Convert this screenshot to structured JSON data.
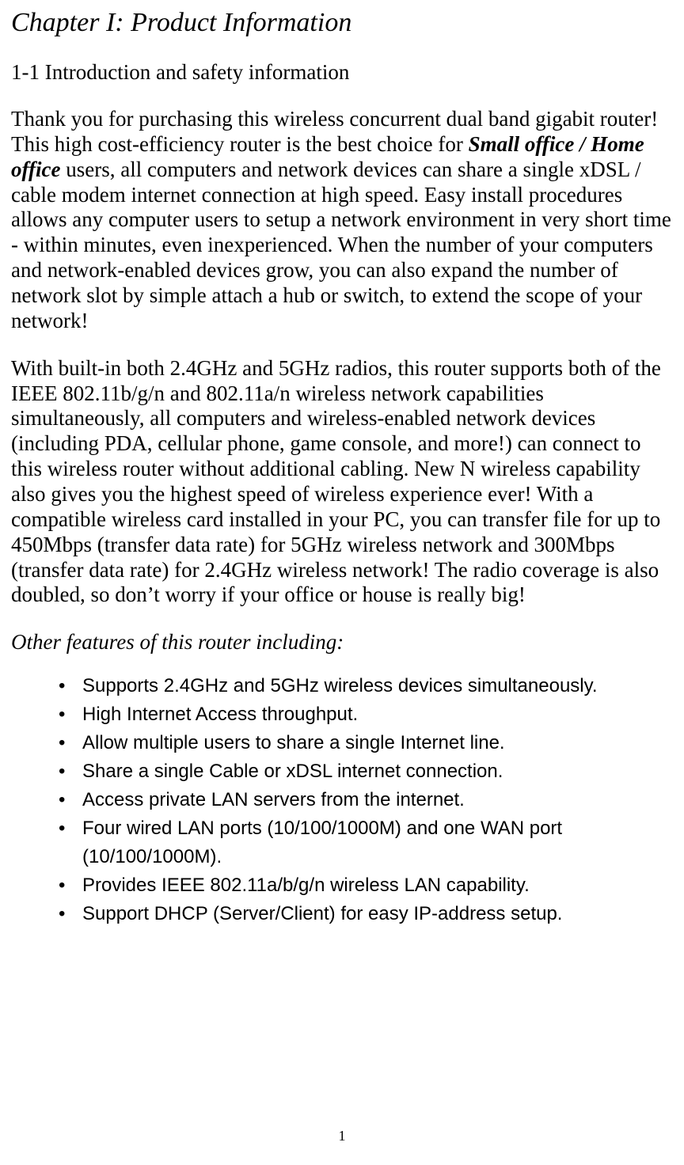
{
  "chapter": {
    "title": "Chapter I: Product Information",
    "title_fontsize": 34,
    "title_style": "italic"
  },
  "section": {
    "heading": "1-1 Introduction and safety information",
    "heading_fontsize": 27
  },
  "paragraphs": {
    "p1_pre": "Thank you for purchasing this wireless concurrent dual band gigabit router! This high cost-efficiency router is the best choice for ",
    "p1_bold": "Small office / Home office",
    "p1_post": " users, all computers and network devices can share a single xDSL / cable modem internet connection at high speed. Easy install procedures allows any computer users to setup a network environment in very short time - within minutes, even inexperienced. When the number of your computers and network-enabled devices grow, you can also expand the number of network slot by simple attach a hub or switch, to extend the scope of your network!",
    "p2": "With built-in both 2.4GHz and 5GHz radios, this router supports both of the IEEE 802.11b/g/n and 802.11a/n wireless network capabilities simultaneously, all computers and wireless-enabled network devices (including PDA, cellular phone, game console, and more!) can connect to this wireless router without additional cabling. New N wireless capability also gives you the highest speed of wireless experience ever! With a compatible wireless card installed in your PC, you can transfer file for up to 450Mbps (transfer data rate) for 5GHz wireless network and 300Mbps (transfer data rate) for 2.4GHz wireless network! The radio coverage is also doubled, so don’t worry if your office or house is really big!"
  },
  "features": {
    "heading": "Other features of this router including:",
    "heading_style": "italic",
    "items": [
      "Supports 2.4GHz and 5GHz wireless devices simultaneously.",
      "High Internet Access throughput.",
      "Allow multiple users to share a single Internet line.",
      "Share a single Cable or xDSL internet connection.",
      "Access private LAN servers from the internet.",
      "Four wired LAN ports (10/100/1000M) and one WAN port (10/100/1000M).",
      "Provides IEEE 802.11a/b/g/n wireless LAN capability.",
      "Support DHCP (Server/Client) for easy IP-address setup."
    ],
    "list_font": "Arial",
    "list_fontsize": 24
  },
  "page_number": "1",
  "colors": {
    "text": "#000000",
    "background": "#ffffff"
  },
  "typography": {
    "body_font": "Times New Roman",
    "body_fontsize": 27,
    "list_font": "Arial"
  }
}
